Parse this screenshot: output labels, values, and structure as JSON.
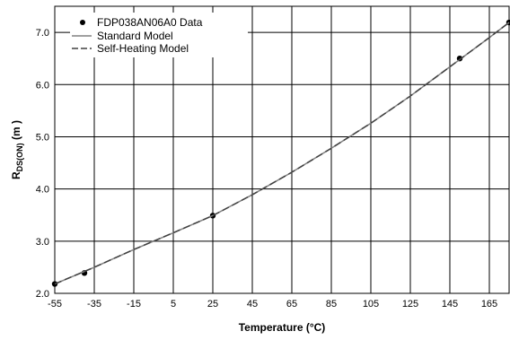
{
  "chart_data": {
    "type": "line",
    "xlabel": "Temperature (°C)",
    "ylabel_main": "R",
    "ylabel_sub": "DS(ON)",
    "ylabel_unit": " (m  )",
    "xlim": [
      -55,
      175
    ],
    "ylim": [
      2.0,
      7.5
    ],
    "x_ticks": [
      -55,
      -35,
      -15,
      5,
      25,
      45,
      65,
      85,
      105,
      125,
      145,
      165
    ],
    "x_tick_labels": [
      "-55",
      "-35",
      "-15",
      "5",
      "25",
      "45",
      "65",
      "85",
      "105",
      "125",
      "145",
      "165"
    ],
    "y_ticks": [
      2.0,
      3.0,
      4.0,
      5.0,
      6.0,
      7.0
    ],
    "y_tick_labels": [
      "2.0",
      "3.0",
      "4.0",
      "5.0",
      "6.0",
      "7.0"
    ],
    "grid": true,
    "legend_position": "top-left",
    "legend": [
      "FDP038AN06A0 Data",
      "Standard Model",
      "Self-Heating Model"
    ],
    "series": [
      {
        "name": "FDP038AN06A0 Data",
        "style": "markers",
        "color": "#000000",
        "x": [
          -55,
          -40,
          25,
          150,
          175
        ],
        "y": [
          2.18,
          2.39,
          3.49,
          6.5,
          7.19
        ]
      },
      {
        "name": "Standard Model",
        "style": "solid",
        "color": "#808080",
        "x": [
          -55,
          -35,
          -15,
          5,
          25,
          45,
          65,
          85,
          105,
          125,
          145,
          165,
          175
        ],
        "y": [
          2.18,
          2.5,
          2.84,
          3.16,
          3.49,
          3.89,
          4.32,
          4.78,
          5.26,
          5.78,
          6.34,
          6.9,
          7.19
        ]
      },
      {
        "name": "Self-Heating Model",
        "style": "dashed",
        "color": "#404040",
        "x": [
          -55,
          -35,
          -15,
          5,
          25,
          45,
          65,
          85,
          105,
          125,
          145,
          165,
          175
        ],
        "y": [
          2.18,
          2.5,
          2.84,
          3.16,
          3.49,
          3.89,
          4.32,
          4.78,
          5.26,
          5.78,
          6.34,
          6.9,
          7.19
        ]
      }
    ]
  }
}
